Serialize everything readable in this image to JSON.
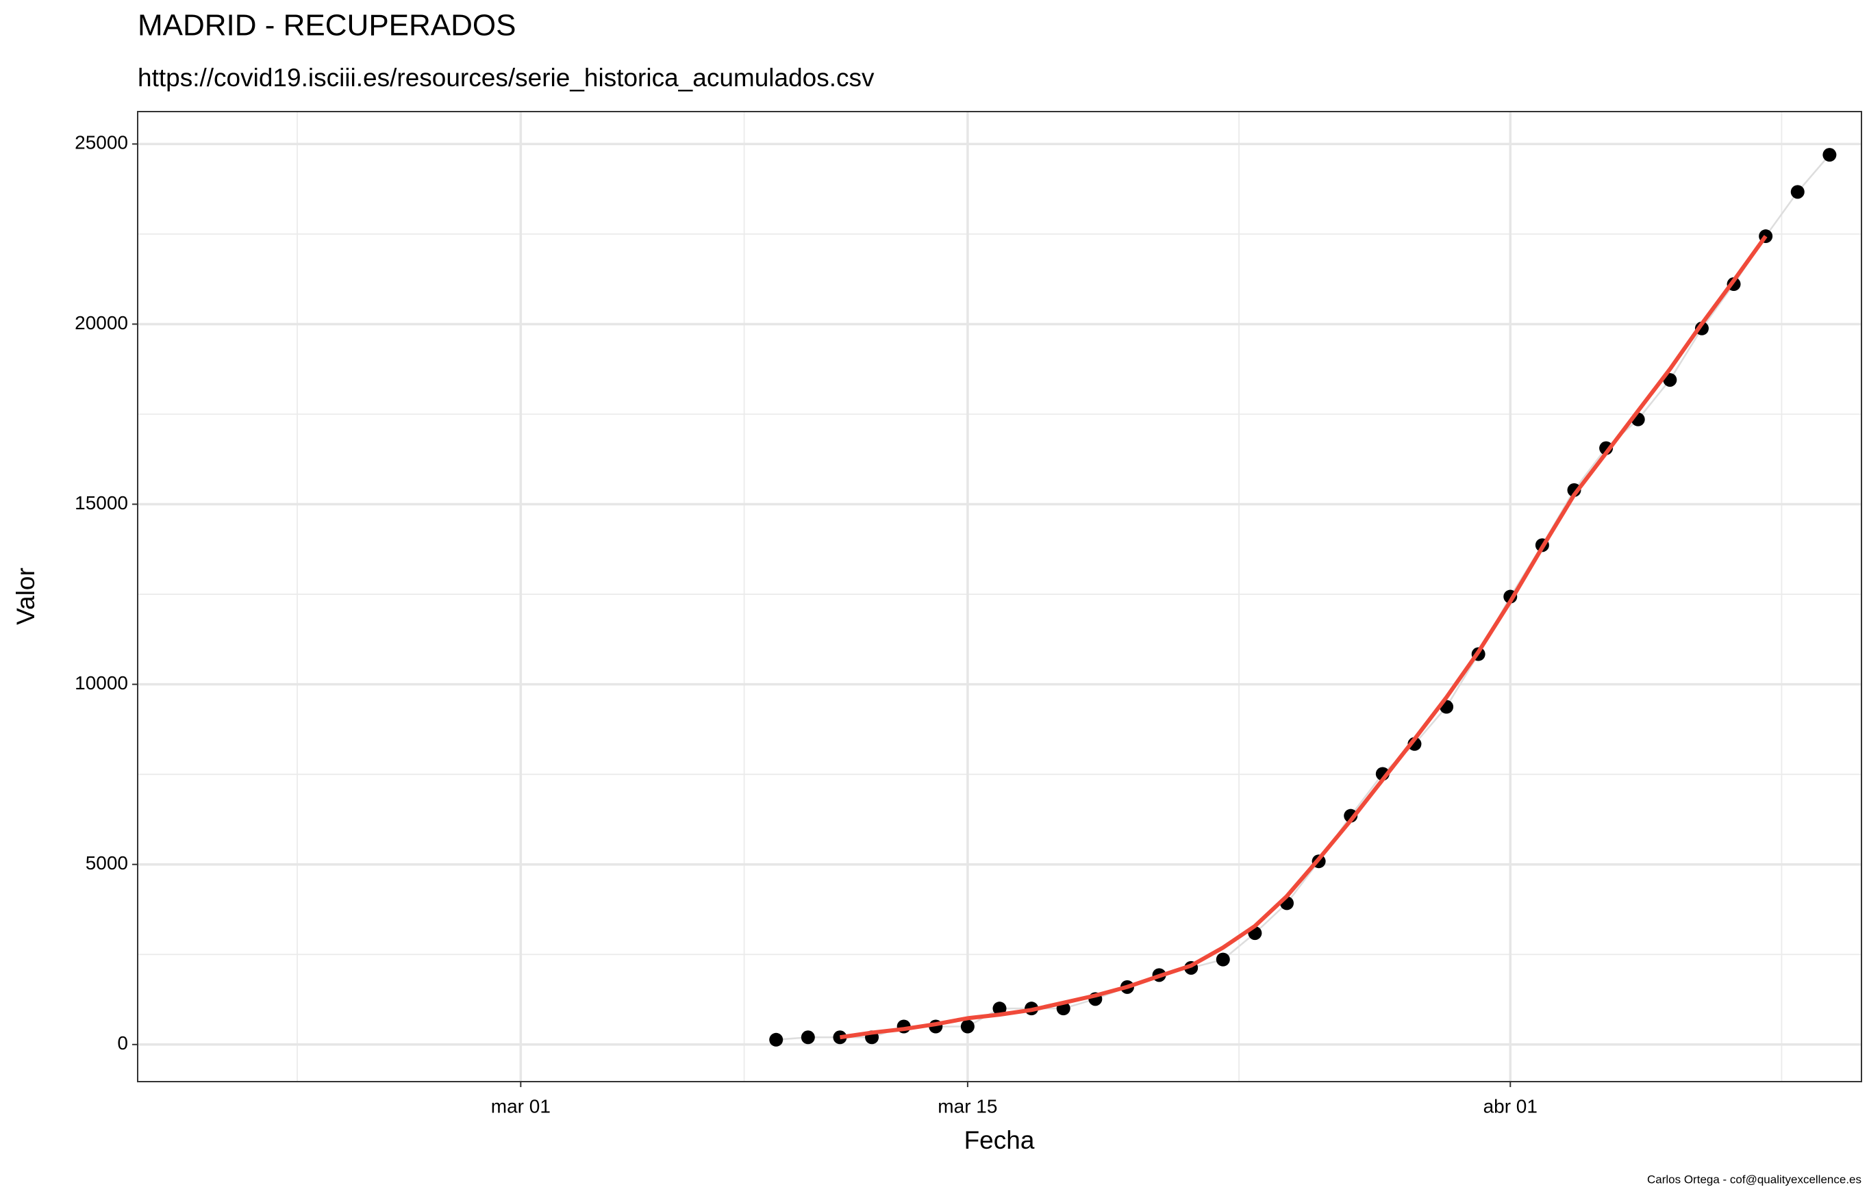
{
  "chart_data": {
    "type": "line",
    "title": "MADRID - RECUPERADOS",
    "subtitle": "https://covid19.isciii.es/resources/serie_historica_acumulados.csv",
    "x_label": "Fecha",
    "y_label": "Valor",
    "caption": "Carlos Ortega - cof@qualityexcellence.es",
    "x": [
      "03-09",
      "03-10",
      "03-11",
      "03-12",
      "03-13",
      "03-14",
      "03-15",
      "03-16",
      "03-17",
      "03-18",
      "03-19",
      "03-20",
      "03-21",
      "03-22",
      "03-23",
      "03-24",
      "03-25",
      "03-26",
      "03-27",
      "03-28",
      "03-29",
      "03-30",
      "03-31",
      "04-01",
      "04-02",
      "04-03",
      "04-04",
      "04-05",
      "04-06",
      "04-07",
      "04-08",
      "04-09",
      "04-10",
      "04-11"
    ],
    "series": [
      {
        "color": "#000000",
        "line_color": "#dddddd",
        "markers": true,
        "values": [
          133,
          200,
          200,
          200,
          500,
          500,
          500,
          1000,
          1000,
          1000,
          1263,
          1596,
          1928,
          2128,
          2360,
          3092,
          3923,
          5086,
          6350,
          7513,
          8344,
          9375,
          10838,
          12434,
          13863,
          15392,
          16556,
          17354,
          18451,
          19880,
          21110,
          22440,
          23670,
          24700
        ]
      },
      {
        "color": "#f04a3a",
        "markers": false,
        "values": [
          null,
          null,
          200,
          330,
          430,
          565,
          730,
          830,
          960,
          1160,
          1360,
          1600,
          1900,
          2190,
          2690,
          3290,
          4120,
          5150,
          6220,
          7350,
          8480,
          9640,
          10900,
          12300,
          13800,
          15260,
          16420,
          17590,
          18750,
          20010,
          21210,
          22440,
          null,
          null
        ]
      }
    ],
    "xlim": [
      "02-18",
      "04-12"
    ],
    "xticks": [
      {
        "value": "03-01",
        "label": "mar 01"
      },
      {
        "value": "03-15",
        "label": "mar 15"
      },
      {
        "value": "04-01",
        "label": "abr 01"
      }
    ],
    "ylim": [
      -1030,
      25900
    ],
    "yticks": [
      0,
      5000,
      10000,
      15000,
      20000,
      25000
    ],
    "grid": true
  }
}
